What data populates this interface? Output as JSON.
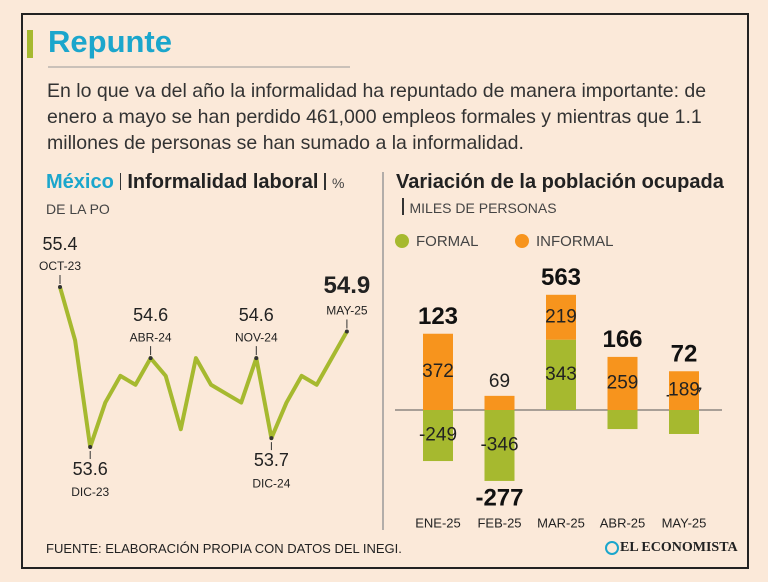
{
  "title": "Repunte",
  "text": "En lo que va del año la informalidad ha repuntado de manera importante: de enero a mayo se han perdido 461,000 empleos formales y mientras que 1.1 millones de personas se han sumado a la informalidad.",
  "chart_data": [
    {
      "type": "line",
      "title": "México",
      "title2": "Informalidad laboral",
      "subtitle": "% DE LA PO",
      "categories": [
        "OCT-23",
        null,
        "DIC-23",
        null,
        null,
        null,
        "ABR-24",
        null,
        null,
        null,
        null,
        null,
        null,
        "NOV-24",
        "DIC-24",
        null,
        null,
        null,
        null,
        "MAY-25"
      ],
      "values": [
        55.4,
        54.8,
        53.6,
        54.1,
        54.4,
        54.3,
        54.6,
        54.4,
        53.8,
        54.6,
        54.3,
        54.2,
        54.1,
        54.6,
        53.7,
        54.1,
        54.4,
        54.3,
        54.6,
        54.9
      ],
      "color": "#a6b92f"
    },
    {
      "type": "bar",
      "title": "Variación de la población ocupada",
      "subtitle": "MILES DE PERSONAS",
      "categories": [
        "ENE-25",
        "FEB-25",
        "MAR-25",
        "ABR-25",
        "MAY-25"
      ],
      "series": [
        {
          "name": "FORMAL",
          "color": "#a6b92f",
          "values": [
            -249,
            -346,
            343,
            -93,
            -117
          ]
        },
        {
          "name": "INFORMAL",
          "color": "#f7941d",
          "values": [
            372,
            69,
            219,
            259,
            189
          ]
        }
      ],
      "totals": [
        123,
        -277,
        563,
        166,
        72
      ],
      "stacked": true
    }
  ],
  "source": "FUENTE: ELABORACIÓN PROPIA CON DATOS DEL INEGI.",
  "logo": "EL ECONOMISTA"
}
